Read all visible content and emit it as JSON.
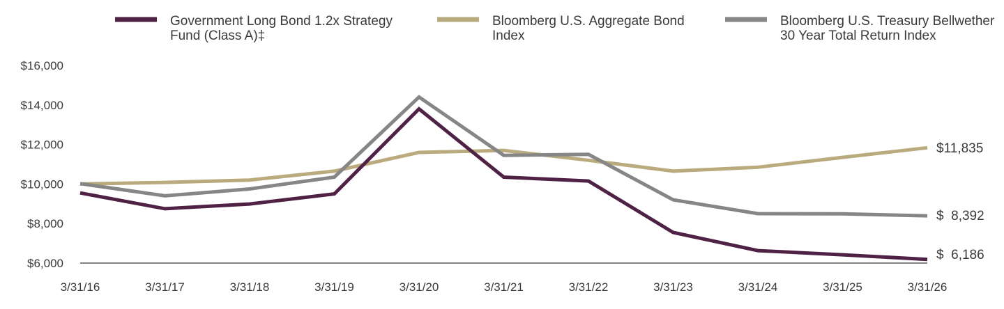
{
  "chart_data": {
    "type": "line",
    "title": "",
    "xlabel": "",
    "ylabel": "",
    "x": [
      "3/31/16",
      "3/31/17",
      "3/31/18",
      "3/31/19",
      "3/31/20",
      "3/31/21",
      "3/31/22",
      "3/31/23",
      "3/31/24",
      "3/31/25",
      "3/31/26"
    ],
    "ylim": [
      6000,
      16000
    ],
    "yticks": [
      6000,
      8000,
      10000,
      12000,
      14000,
      16000
    ],
    "ytick_labels": [
      "$6,000",
      "$8,000",
      "$10,000",
      "$12,000",
      "$14,000",
      "$16,000"
    ],
    "grid": false,
    "legend_position": "top",
    "series": [
      {
        "name_lines": [
          "Government Long Bond 1.2x Strategy",
          "Fund (Class A)‡"
        ],
        "color": "#4f2245",
        "values": [
          9550,
          8750,
          8990,
          9500,
          13800,
          10350,
          10150,
          7550,
          6630,
          6420,
          6186
        ],
        "end_label": "$  6,186"
      },
      {
        "name_lines": [
          "Bloomberg U.S. Aggregate Bond",
          "Index"
        ],
        "color": "#b9ab7d",
        "values": [
          10000,
          10080,
          10200,
          10650,
          11600,
          11700,
          11200,
          10650,
          10850,
          11350,
          11835
        ],
        "end_label": "$11,835"
      },
      {
        "name_lines": [
          "Bloomberg U.S. Treasury Bellwether",
          "30 Year Total Return Index"
        ],
        "color": "#868686",
        "values": [
          10020,
          9400,
          9750,
          10350,
          14400,
          11450,
          11500,
          9200,
          8500,
          8490,
          8392
        ],
        "end_label": "$  8,392"
      }
    ]
  }
}
